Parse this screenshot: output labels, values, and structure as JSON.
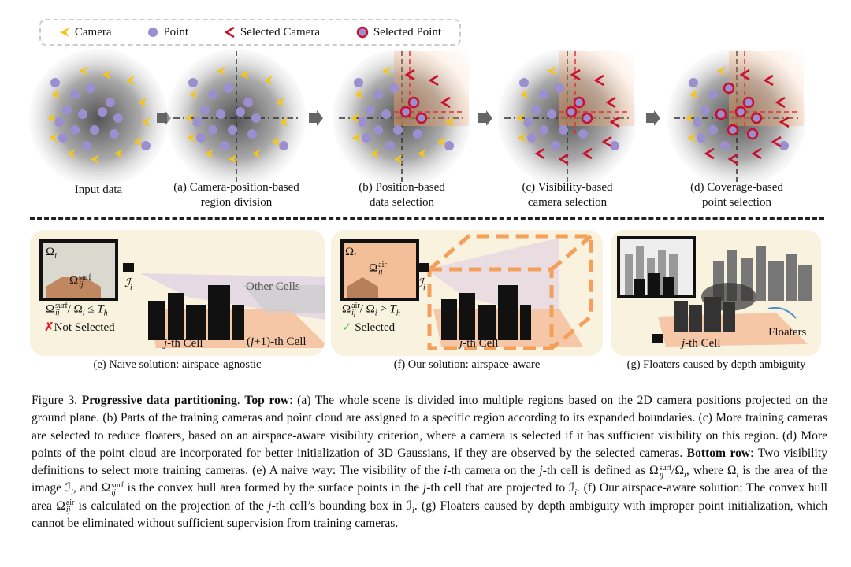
{
  "legend": {
    "camera": "Camera",
    "point": "Point",
    "selected_camera": "Selected Camera",
    "selected_point": "Selected Point"
  },
  "colors": {
    "camera": "#f5c518",
    "point": "#9b8fd0",
    "selected_camera": "#c8102e",
    "selected_point_fill": "#9b8fd0",
    "selected_point_stroke": "#c8102e",
    "panel_bg": "#f8f2de",
    "highlight": "#f4a36a"
  },
  "top_row": {
    "labels": [
      {
        "l1": "Input data",
        "l2": ""
      },
      {
        "l1": "(a) Camera-position-based",
        "l2": "region division"
      },
      {
        "l1": "(b) Position-based",
        "l2": "data selection"
      },
      {
        "l1": "(c) Visibility-based",
        "l2": "camera selection"
      },
      {
        "l1": "(d) Coverage-based",
        "l2": "point selection"
      }
    ]
  },
  "panel_e": {
    "omega_i": "Ω",
    "i": "i",
    "omega_surf": "Ω",
    "surf": "surf",
    "ij": "ij",
    "image_label": "ℐ",
    "other_cells": "Other Cells",
    "ratio_left": "Ω",
    "ratio_mid": "/ Ω",
    "ratio_op": " ≤ ",
    "th": "T",
    "h": "h",
    "status_mark": "✗",
    "status": "Not Selected",
    "cell": "j",
    "cell_rest": "-th Cell",
    "next_cell_open": "(",
    "next_cell": "j",
    "next_cell_rest": "+1)-th Cell",
    "caption": "(e) Naive solution: airspace-agnostic"
  },
  "panel_f": {
    "omega_i": "Ω",
    "i": "i",
    "omega_air": "Ω",
    "air": "air",
    "ij": "ij",
    "image_label": "ℐ",
    "ratio_left": "Ω",
    "ratio_mid": "/ Ω",
    "ratio_op": " > ",
    "th": "T",
    "h": "h",
    "status_mark": "✓",
    "status": "Selected",
    "cell": "j",
    "cell_rest": "-th Cell",
    "caption": "(f) Our solution: airspace-aware"
  },
  "panel_g": {
    "cell": "j",
    "cell_rest": "-th Cell",
    "floaters": "Floaters",
    "caption": "(g) Floaters caused by depth ambiguity"
  },
  "caption": [
    {
      "t": "Figure 3. "
    },
    {
      "t": "Progressive data partitioning",
      "s": "b"
    },
    {
      "t": ". "
    },
    {
      "t": "Top row",
      "s": "b"
    },
    {
      "t": ": (a) The whole scene is divided into multiple regions based on the 2D camera positions projected on the ground plane. (b) Parts of the training cameras and point cloud are assigned to a specific region according to its expanded boundaries. (c) More training cameras are selected to reduce floaters, based on an airspace-aware visibility criterion, where a camera is selected if it has sufficient visibility on this region. (d) More points of the point cloud are incorporated for better initialization of 3D Gaussians, if they are observed by the selected cameras. "
    },
    {
      "t": "Bottom row",
      "s": "b"
    },
    {
      "t": ": Two visibility definitions to select more training cameras. (e) A naive way: The visibility of the "
    },
    {
      "t": "i",
      "s": "i"
    },
    {
      "t": "-th camera on the "
    },
    {
      "t": "j",
      "s": "i"
    },
    {
      "t": "-th cell is defined as Ω"
    },
    {
      "t": "surf",
      "sub": "ij",
      "s": "ss"
    },
    {
      "t": "/Ω"
    },
    {
      "t": "i",
      "s": "sub"
    },
    {
      "t": ", where Ω"
    },
    {
      "t": "i",
      "s": "sub"
    },
    {
      "t": " is the area of the image ℐ"
    },
    {
      "t": "i",
      "s": "sub"
    },
    {
      "t": ", and Ω"
    },
    {
      "t": "surf",
      "sub": "ij",
      "s": "ss"
    },
    {
      "t": " is the convex hull area formed by the surface points in the "
    },
    {
      "t": "j",
      "s": "i"
    },
    {
      "t": "-th cell that are projected to ℐ"
    },
    {
      "t": "i",
      "s": "sub"
    },
    {
      "t": ". (f) Our airspace-aware solution: The convex hull area Ω"
    },
    {
      "t": "air",
      "sub": "ij",
      "s": "ss"
    },
    {
      "t": " is calculated on the projection of the "
    },
    {
      "t": "j",
      "s": "i"
    },
    {
      "t": "-th cell’s bounding box in ℐ"
    },
    {
      "t": "i",
      "s": "sub"
    },
    {
      "t": ". (g) Floaters caused by depth ambiguity with improper point initialization, which cannot be eliminated without sufficient supervision from training cameras."
    }
  ]
}
